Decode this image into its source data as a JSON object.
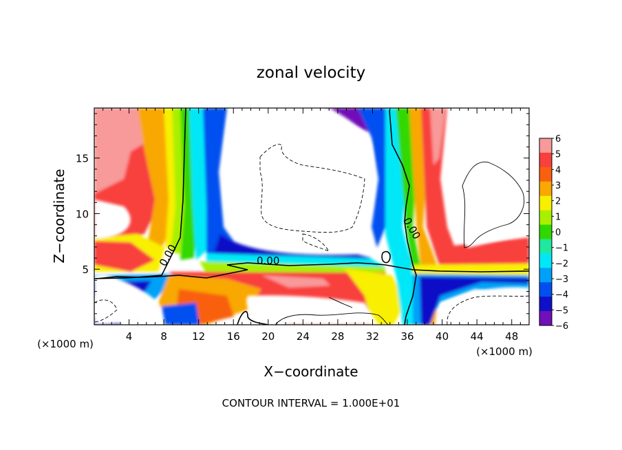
{
  "chart_data": {
    "type": "heatmap",
    "title": "zonal velocity",
    "xlabel": "X−coordinate",
    "ylabel": "Z−coordinate",
    "x_unit": "(×1000 m)",
    "xlim": [
      0,
      50
    ],
    "ylim": [
      0,
      19.5
    ],
    "x_ticks": [
      4,
      8,
      12,
      16,
      20,
      24,
      28,
      32,
      36,
      40,
      44,
      48
    ],
    "y_ticks": [
      5,
      10,
      15
    ],
    "contour_label": "0.00",
    "footer": "CONTOUR INTERVAL = 1.000E+01",
    "colorbar": {
      "levels": [
        6,
        5,
        4,
        3,
        2,
        1,
        0,
        -1,
        -2,
        -3,
        -4,
        -5,
        -6
      ],
      "tick_labels": [
        "6",
        "5",
        "4",
        "3",
        "2",
        "1",
        "0",
        "−1",
        "−2",
        "−3",
        "−4",
        "−5",
        "−6"
      ],
      "colors": [
        "#f89a9a",
        "#f8403c",
        "#f86010",
        "#f8a800",
        "#f8f000",
        "#a8f000",
        "#30d800",
        "#20e8a0",
        "#00e8f8",
        "#00a0f8",
        "#0050f0",
        "#1010c8",
        "#7010b8"
      ]
    }
  }
}
